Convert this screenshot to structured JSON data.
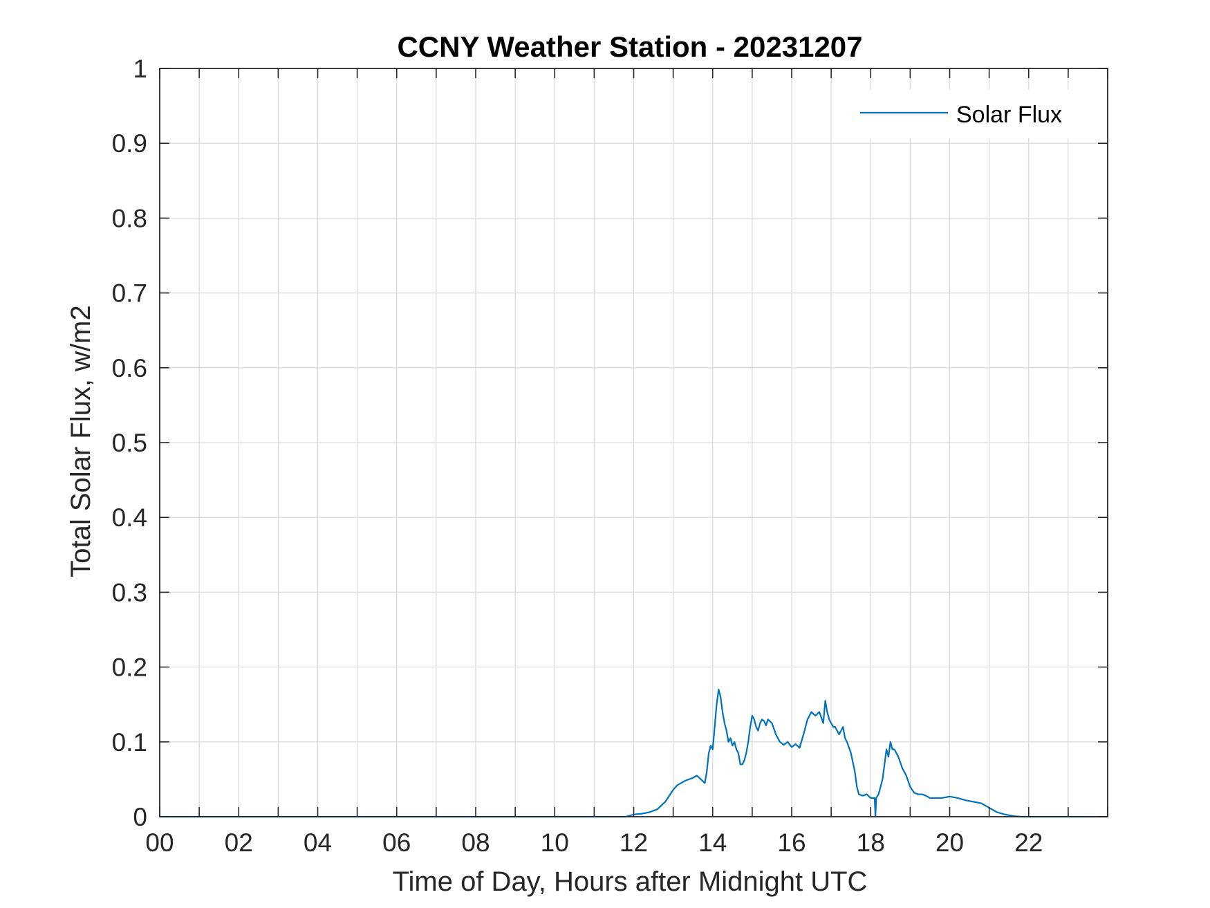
{
  "chart_data": {
    "type": "line",
    "title": "CCNY Weather Station - 20231207",
    "xlabel": "Time of Day, Hours after Midnight UTC",
    "ylabel": "Total Solar Flux, w/m2",
    "xlim": [
      0,
      24
    ],
    "ylim": [
      0,
      1
    ],
    "xticks": [
      0,
      2,
      4,
      6,
      8,
      10,
      12,
      14,
      16,
      18,
      20,
      22
    ],
    "xtick_labels": [
      "00",
      "02",
      "04",
      "06",
      "08",
      "10",
      "12",
      "14",
      "16",
      "18",
      "20",
      "22"
    ],
    "yticks": [
      0,
      0.1,
      0.2,
      0.3,
      0.4,
      0.5,
      0.6,
      0.7,
      0.8,
      0.9,
      1
    ],
    "ytick_labels": [
      "0",
      "0.1",
      "0.2",
      "0.3",
      "0.4",
      "0.5",
      "0.6",
      "0.7",
      "0.8",
      "0.9",
      "1"
    ],
    "grid": true,
    "minor_x_grid": true,
    "legend_position": "top-right",
    "series": [
      {
        "name": "Solar Flux",
        "color": "#0072BD",
        "x": [
          0,
          11.8,
          12.0,
          12.2,
          12.4,
          12.6,
          12.8,
          13.0,
          13.1,
          13.2,
          13.3,
          13.4,
          13.5,
          13.6,
          13.7,
          13.8,
          13.85,
          13.9,
          13.95,
          14.0,
          14.05,
          14.1,
          14.15,
          14.2,
          14.25,
          14.3,
          14.35,
          14.4,
          14.45,
          14.5,
          14.55,
          14.6,
          14.65,
          14.7,
          14.75,
          14.8,
          14.85,
          14.9,
          14.95,
          15.0,
          15.05,
          15.1,
          15.15,
          15.2,
          15.25,
          15.3,
          15.35,
          15.4,
          15.5,
          15.6,
          15.7,
          15.8,
          15.9,
          16.0,
          16.1,
          16.2,
          16.3,
          16.4,
          16.5,
          16.6,
          16.7,
          16.8,
          16.85,
          16.9,
          16.95,
          17.0,
          17.05,
          17.1,
          17.2,
          17.3,
          17.35,
          17.4,
          17.5,
          17.6,
          17.65,
          17.7,
          17.8,
          17.9,
          18.0,
          18.1,
          18.12,
          18.14,
          18.2,
          18.3,
          18.4,
          18.45,
          18.5,
          18.55,
          18.6,
          18.7,
          18.8,
          18.9,
          19.0,
          19.1,
          19.2,
          19.3,
          19.4,
          19.5,
          19.6,
          19.8,
          20.0,
          20.2,
          20.4,
          20.6,
          20.8,
          21.0,
          21.2,
          21.4,
          21.6,
          21.8,
          22.0,
          22.5,
          23.0,
          23.5,
          24.0
        ],
        "values": [
          0.0,
          0.0,
          0.003,
          0.004,
          0.006,
          0.01,
          0.02,
          0.036,
          0.042,
          0.045,
          0.048,
          0.05,
          0.052,
          0.055,
          0.05,
          0.045,
          0.06,
          0.085,
          0.095,
          0.09,
          0.12,
          0.15,
          0.17,
          0.16,
          0.14,
          0.125,
          0.115,
          0.1,
          0.105,
          0.095,
          0.1,
          0.09,
          0.085,
          0.07,
          0.07,
          0.075,
          0.085,
          0.1,
          0.12,
          0.135,
          0.13,
          0.12,
          0.115,
          0.125,
          0.13,
          0.128,
          0.122,
          0.13,
          0.125,
          0.11,
          0.1,
          0.096,
          0.1,
          0.093,
          0.097,
          0.092,
          0.11,
          0.13,
          0.14,
          0.135,
          0.14,
          0.125,
          0.155,
          0.14,
          0.13,
          0.125,
          0.12,
          0.12,
          0.11,
          0.12,
          0.105,
          0.1,
          0.085,
          0.06,
          0.04,
          0.03,
          0.028,
          0.03,
          0.025,
          0.025,
          0.0,
          0.025,
          0.03,
          0.05,
          0.09,
          0.08,
          0.1,
          0.09,
          0.09,
          0.08,
          0.065,
          0.055,
          0.04,
          0.032,
          0.03,
          0.03,
          0.028,
          0.025,
          0.025,
          0.025,
          0.027,
          0.025,
          0.022,
          0.02,
          0.018,
          0.012,
          0.006,
          0.003,
          0.001,
          0.0,
          0.0,
          0.0,
          0.0,
          0.0,
          0.0
        ]
      }
    ]
  }
}
